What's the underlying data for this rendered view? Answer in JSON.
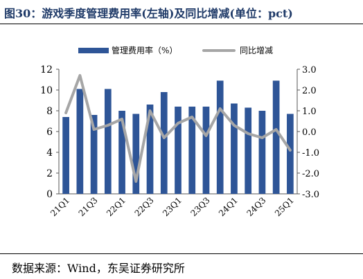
{
  "title": "图30：游戏季度管理费用率(左轴)及同比增减(单位：pct)",
  "source": "数据来源：Wind，东吴证券研究所",
  "colors": {
    "bar": "#2e5597",
    "line": "#a6a6a6",
    "title": "#1f3a68"
  },
  "chart_data": {
    "type": "bar+line",
    "title": "图30：游戏季度管理费用率(左轴)及同比增减(单位：pct)",
    "categories": [
      "21Q1",
      "21Q2",
      "21Q3",
      "21Q4",
      "22Q1",
      "22Q2",
      "22Q3",
      "22Q4",
      "23Q1",
      "23Q2",
      "23Q3",
      "23Q4",
      "24Q1",
      "24Q2",
      "24Q3",
      "24Q4",
      "25Q1"
    ],
    "tick_labels": [
      "21Q1",
      "21Q3",
      "22Q1",
      "22Q3",
      "23Q1",
      "23Q3",
      "24Q1",
      "24Q3",
      "25Q1"
    ],
    "series": [
      {
        "name": "管理费用率（%）",
        "type": "bar",
        "axis": "left",
        "values": [
          7.4,
          10.1,
          7.6,
          10.1,
          8.0,
          7.7,
          8.6,
          9.8,
          8.4,
          8.4,
          8.4,
          10.9,
          8.7,
          8.3,
          8.0,
          10.9,
          7.7
        ]
      },
      {
        "name": "同比增减",
        "type": "line",
        "axis": "right",
        "values": [
          0.9,
          2.7,
          0.1,
          0.3,
          0.6,
          -2.4,
          1.0,
          -0.3,
          0.4,
          0.7,
          -0.2,
          1.1,
          0.3,
          -0.1,
          -0.3,
          0.1,
          -0.9
        ]
      }
    ],
    "y_left": {
      "min": 0,
      "max": 12,
      "ticks": [
        0,
        2,
        4,
        6,
        8,
        10,
        12
      ]
    },
    "y_right": {
      "min": -3.0,
      "max": 3.0,
      "ticks": [
        "3.0",
        "2.0",
        "1.0",
        "0.0",
        "-1.0",
        "-2.0",
        "-3.0"
      ]
    },
    "legend": "top",
    "grid": false
  }
}
